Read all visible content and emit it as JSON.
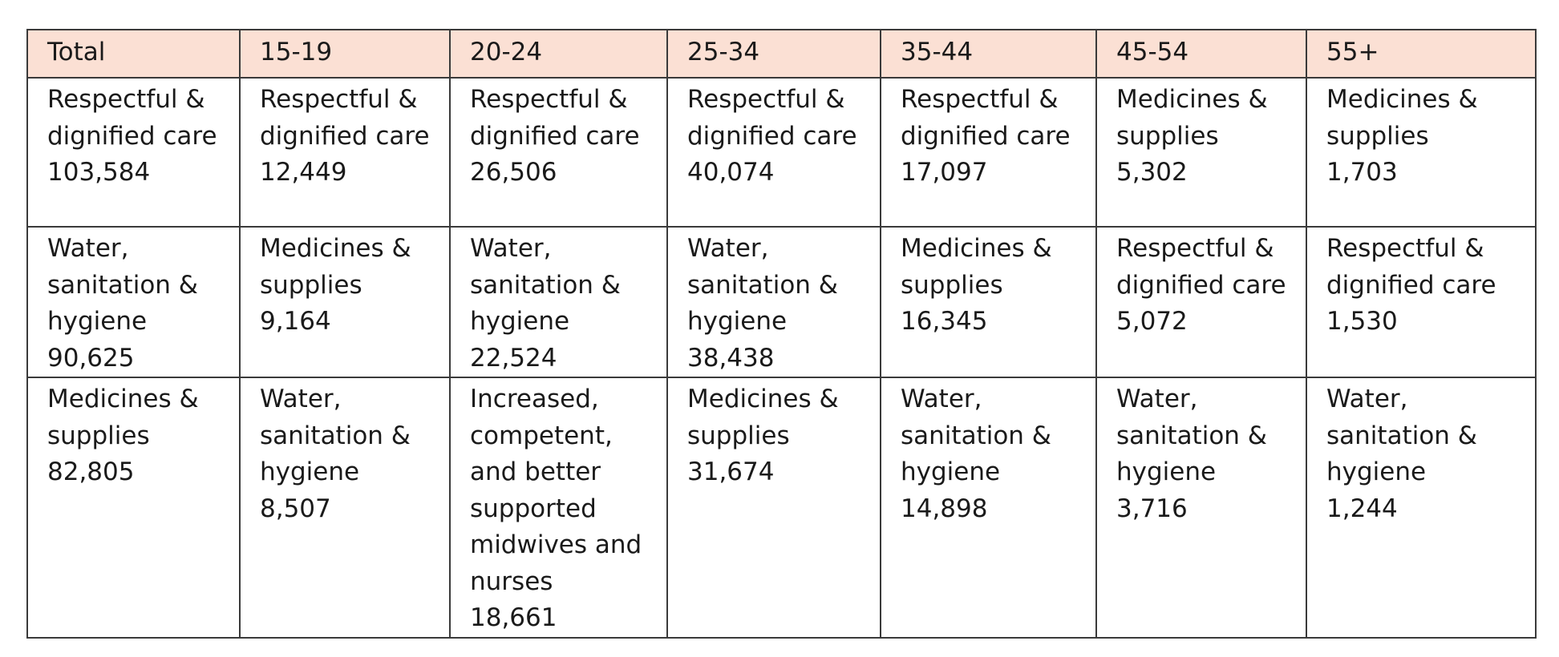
{
  "table": {
    "headers": [
      "Total",
      "15-19",
      "20-24",
      "25-34",
      "35-44",
      "45-54",
      "55+"
    ],
    "rows": [
      [
        {
          "lines": [
            "Respectful &",
            "dignified care"
          ],
          "value": "103,584"
        },
        {
          "lines": [
            "Respectful &",
            "dignified care"
          ],
          "value": "12,449"
        },
        {
          "lines": [
            "Respectful &",
            "dignified care"
          ],
          "value": "26,506"
        },
        {
          "lines": [
            "Respectful &",
            "dignified care"
          ],
          "value": "40,074"
        },
        {
          "lines": [
            "Respectful &",
            "dignified care"
          ],
          "value": "17,097"
        },
        {
          "lines": [
            "Medicines &",
            "supplies"
          ],
          "value": "5,302"
        },
        {
          "lines": [
            "Medicines &",
            "supplies"
          ],
          "value": "1,703"
        }
      ],
      [
        {
          "lines": [
            "Water,",
            "sanitation &",
            "hygiene"
          ],
          "value": "90,625"
        },
        {
          "lines": [
            "Medicines &",
            "supplies"
          ],
          "value": "9,164"
        },
        {
          "lines": [
            "Water,",
            "sanitation &",
            "hygiene"
          ],
          "value": "22,524"
        },
        {
          "lines": [
            "Water,",
            "sanitation &",
            "hygiene"
          ],
          "value": "38,438"
        },
        {
          "lines": [
            "Medicines &",
            "supplies"
          ],
          "value": "16,345"
        },
        {
          "lines": [
            "Respectful &",
            "dignified care"
          ],
          "value": "5,072"
        },
        {
          "lines": [
            "Respectful &",
            "dignified care"
          ],
          "value": "1,530"
        }
      ],
      [
        {
          "lines": [
            "Medicines &",
            "supplies"
          ],
          "value": "82,805"
        },
        {
          "lines": [
            "Water,",
            "sanitation &",
            "hygiene"
          ],
          "value": "8,507"
        },
        {
          "lines": [
            "Increased,",
            "competent,",
            "and better",
            "supported",
            "midwives and",
            "nurses"
          ],
          "value": "18,661"
        },
        {
          "lines": [
            "Medicines &",
            "supplies"
          ],
          "value": "31,674"
        },
        {
          "lines": [
            "Water,",
            "sanitation &",
            "hygiene"
          ],
          "value": "14,898"
        },
        {
          "lines": [
            "Water,",
            "sanitation &",
            "hygiene"
          ],
          "value": "3,716"
        },
        {
          "lines": [
            "Water,",
            "sanitation &",
            "hygiene"
          ],
          "value": "1,244"
        }
      ]
    ]
  },
  "colors": {
    "header_background": "#fbe0d4",
    "border": "#3a3a3a"
  }
}
